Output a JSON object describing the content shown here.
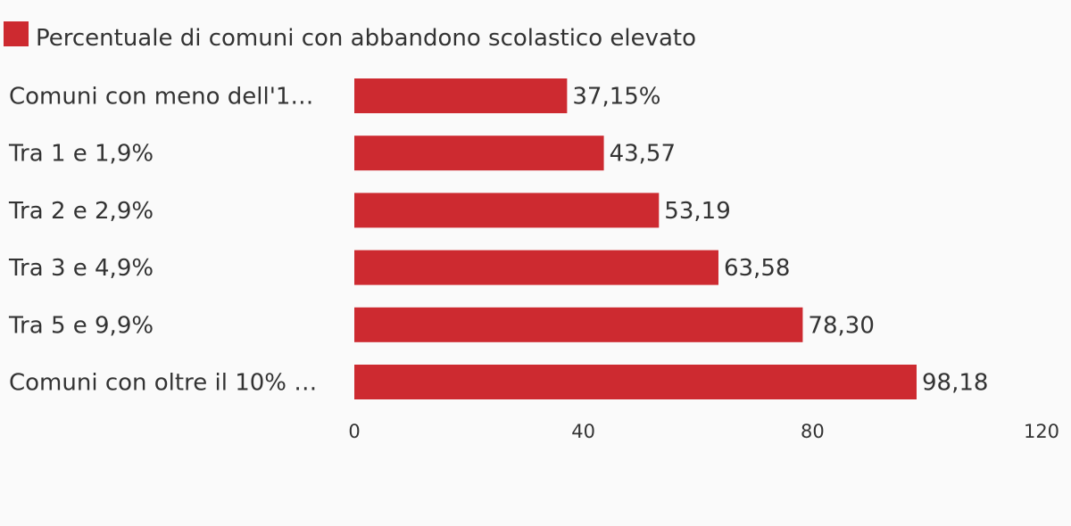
{
  "colors": {
    "bar": "#cd2a30",
    "text": "#333333",
    "background": "#fafafa"
  },
  "chart_data": {
    "type": "bar",
    "orientation": "horizontal",
    "categories": [
      "Comuni con meno dell'1…",
      "Tra 1 e 1,9%",
      "Tra 2 e 2,9%",
      "Tra 3 e 4,9%",
      "Tra 5 e 9,9%",
      "Comuni con oltre il 10% …"
    ],
    "series": [
      {
        "name": "Percentuale di comuni con abbandono scolastico elevato",
        "values": [
          37.15,
          43.57,
          53.19,
          63.58,
          78.3,
          98.18
        ],
        "value_labels": [
          "37,15%",
          "43,57",
          "53,19",
          "63,58",
          "78,30",
          "98,18"
        ]
      }
    ],
    "xlim": [
      0,
      120
    ],
    "xticks": [
      0,
      40,
      80,
      120
    ],
    "grid": false,
    "legend_position": "top-left"
  }
}
